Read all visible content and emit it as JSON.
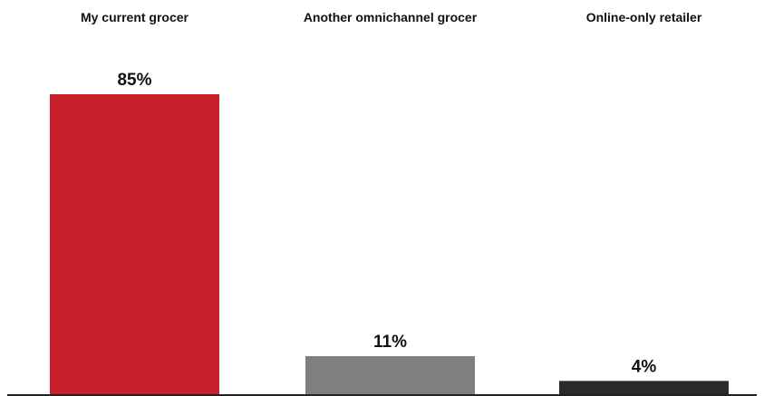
{
  "chart_data": {
    "type": "bar",
    "categories": [
      "My current grocer",
      "Another omnichannel grocer",
      "Online-only retailer"
    ],
    "values": [
      85,
      11,
      4
    ],
    "value_labels": [
      "85%",
      "11%",
      "4%"
    ],
    "colors": [
      "#c8202a",
      "#7f7f7f",
      "#2a2a2a"
    ],
    "ylim": [
      0,
      100
    ],
    "title": "",
    "xlabel": "",
    "ylabel": "",
    "grid": false,
    "legend": "none"
  }
}
